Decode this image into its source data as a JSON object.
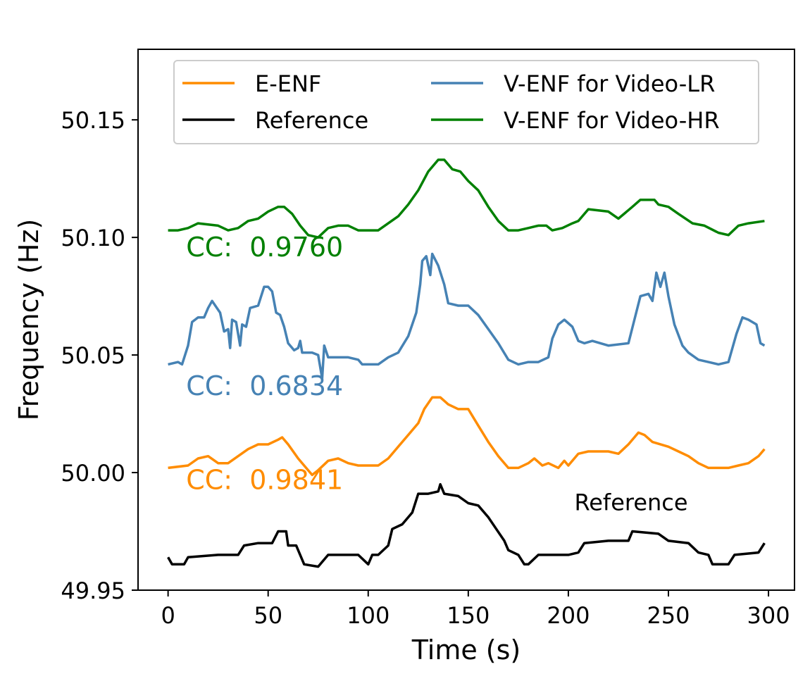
{
  "chart_data": {
    "type": "line",
    "xlabel": "Time (s)",
    "ylabel": "Frequency (Hz)",
    "xlim": [
      -15,
      313
    ],
    "ylim": [
      49.95,
      50.18
    ],
    "xticks": [
      0,
      50,
      100,
      150,
      200,
      250,
      300
    ],
    "yticks": [
      49.95,
      50.0,
      50.05,
      50.1,
      50.15
    ],
    "ytick_labels": [
      "49.95",
      "50.00",
      "50.05",
      "50.10",
      "50.15"
    ],
    "grid": false,
    "legend": {
      "placement": "top",
      "columns": 2,
      "entries": [
        "E-ENF",
        "Reference",
        "V-ENF for Video-LR",
        "V-ENF for Video-HR"
      ]
    },
    "series": [
      {
        "name": "E-ENF",
        "color": "#ff8c00",
        "points": [
          [
            0,
            50.002
          ],
          [
            10,
            50.003
          ],
          [
            15,
            50.006
          ],
          [
            20,
            50.007
          ],
          [
            25,
            50.004
          ],
          [
            30,
            50.004
          ],
          [
            35,
            50.007
          ],
          [
            40,
            50.01
          ],
          [
            45,
            50.012
          ],
          [
            50,
            50.012
          ],
          [
            55,
            50.014
          ],
          [
            57,
            50.015
          ],
          [
            60,
            50.012
          ],
          [
            65,
            50.006
          ],
          [
            70,
            50.001
          ],
          [
            72,
            49.999
          ],
          [
            75,
            50.001
          ],
          [
            80,
            50.005
          ],
          [
            85,
            50.006
          ],
          [
            90,
            50.004
          ],
          [
            95,
            50.003
          ],
          [
            100,
            50.003
          ],
          [
            105,
            50.003
          ],
          [
            110,
            50.006
          ],
          [
            115,
            50.011
          ],
          [
            120,
            50.016
          ],
          [
            125,
            50.021
          ],
          [
            128,
            50.027
          ],
          [
            132,
            50.032
          ],
          [
            136,
            50.032
          ],
          [
            140,
            50.029
          ],
          [
            145,
            50.027
          ],
          [
            150,
            50.027
          ],
          [
            155,
            50.02
          ],
          [
            160,
            50.013
          ],
          [
            165,
            50.007
          ],
          [
            170,
            50.002
          ],
          [
            175,
            50.002
          ],
          [
            180,
            50.004
          ],
          [
            183,
            50.006
          ],
          [
            187,
            50.003
          ],
          [
            190,
            50.004
          ],
          [
            195,
            50.002
          ],
          [
            198,
            50.005
          ],
          [
            200,
            50.003
          ],
          [
            205,
            50.008
          ],
          [
            210,
            50.009
          ],
          [
            220,
            50.009
          ],
          [
            225,
            50.008
          ],
          [
            230,
            50.012
          ],
          [
            235,
            50.017
          ],
          [
            238,
            50.016
          ],
          [
            242,
            50.013
          ],
          [
            250,
            50.011
          ],
          [
            255,
            50.009
          ],
          [
            260,
            50.007
          ],
          [
            265,
            50.004
          ],
          [
            270,
            50.002
          ],
          [
            280,
            50.002
          ],
          [
            285,
            50.003
          ],
          [
            290,
            50.004
          ],
          [
            295,
            50.007
          ],
          [
            298,
            50.01
          ]
        ]
      },
      {
        "name": "Reference",
        "color": "#000000",
        "points": [
          [
            0,
            49.964
          ],
          [
            2,
            49.961
          ],
          [
            8,
            49.961
          ],
          [
            10,
            49.964
          ],
          [
            25,
            49.965
          ],
          [
            35,
            49.965
          ],
          [
            38,
            49.969
          ],
          [
            45,
            49.97
          ],
          [
            52,
            49.97
          ],
          [
            55,
            49.975
          ],
          [
            59,
            49.975
          ],
          [
            60,
            49.969
          ],
          [
            64,
            49.969
          ],
          [
            68,
            49.961
          ],
          [
            75,
            49.96
          ],
          [
            80,
            49.965
          ],
          [
            95,
            49.965
          ],
          [
            100,
            49.961
          ],
          [
            102,
            49.965
          ],
          [
            105,
            49.965
          ],
          [
            110,
            49.969
          ],
          [
            112,
            49.976
          ],
          [
            117,
            49.978
          ],
          [
            122,
            49.983
          ],
          [
            125,
            49.991
          ],
          [
            130,
            49.991
          ],
          [
            135,
            49.992
          ],
          [
            136,
            49.995
          ],
          [
            138,
            49.991
          ],
          [
            145,
            49.99
          ],
          [
            150,
            49.987
          ],
          [
            155,
            49.986
          ],
          [
            160,
            49.981
          ],
          [
            164,
            49.976
          ],
          [
            168,
            49.971
          ],
          [
            170,
            49.967
          ],
          [
            175,
            49.965
          ],
          [
            178,
            49.961
          ],
          [
            180,
            49.961
          ],
          [
            185,
            49.965
          ],
          [
            200,
            49.965
          ],
          [
            205,
            49.966
          ],
          [
            208,
            49.97
          ],
          [
            220,
            49.971
          ],
          [
            230,
            49.971
          ],
          [
            232,
            49.975
          ],
          [
            245,
            49.974
          ],
          [
            250,
            49.971
          ],
          [
            260,
            49.97
          ],
          [
            265,
            49.966
          ],
          [
            270,
            49.965
          ],
          [
            272,
            49.961
          ],
          [
            280,
            49.961
          ],
          [
            283,
            49.965
          ],
          [
            295,
            49.966
          ],
          [
            298,
            49.97
          ]
        ]
      },
      {
        "name": "V-ENF for Video-LR",
        "color": "#4682b4",
        "points": [
          [
            0,
            50.046
          ],
          [
            5,
            50.047
          ],
          [
            7,
            50.046
          ],
          [
            10,
            50.054
          ],
          [
            12,
            50.064
          ],
          [
            15,
            50.066
          ],
          [
            18,
            50.066
          ],
          [
            20,
            50.07
          ],
          [
            22,
            50.073
          ],
          [
            26,
            50.068
          ],
          [
            28,
            50.06
          ],
          [
            30,
            50.061
          ],
          [
            31,
            50.053
          ],
          [
            32,
            50.065
          ],
          [
            34,
            50.064
          ],
          [
            36,
            50.054
          ],
          [
            37,
            50.063
          ],
          [
            39,
            50.062
          ],
          [
            41,
            50.07
          ],
          [
            45,
            50.071
          ],
          [
            48,
            50.079
          ],
          [
            50,
            50.079
          ],
          [
            52,
            50.077
          ],
          [
            54,
            50.068
          ],
          [
            56,
            50.067
          ],
          [
            58,
            50.062
          ],
          [
            60,
            50.055
          ],
          [
            63,
            50.052
          ],
          [
            65,
            50.053
          ],
          [
            66,
            50.056
          ],
          [
            67,
            50.051
          ],
          [
            72,
            50.051
          ],
          [
            75,
            50.05
          ],
          [
            77,
            50.04
          ],
          [
            78,
            50.054
          ],
          [
            80,
            50.049
          ],
          [
            90,
            50.049
          ],
          [
            95,
            50.048
          ],
          [
            97,
            50.046
          ],
          [
            100,
            50.046
          ],
          [
            105,
            50.046
          ],
          [
            110,
            50.049
          ],
          [
            115,
            50.051
          ],
          [
            120,
            50.058
          ],
          [
            124,
            50.068
          ],
          [
            126,
            50.08
          ],
          [
            127,
            50.09
          ],
          [
            129,
            50.092
          ],
          [
            131,
            50.084
          ],
          [
            132,
            50.093
          ],
          [
            135,
            50.088
          ],
          [
            138,
            50.08
          ],
          [
            140,
            50.072
          ],
          [
            145,
            50.071
          ],
          [
            150,
            50.071
          ],
          [
            155,
            50.067
          ],
          [
            160,
            50.061
          ],
          [
            165,
            50.055
          ],
          [
            170,
            50.048
          ],
          [
            175,
            50.046
          ],
          [
            180,
            50.047
          ],
          [
            185,
            50.047
          ],
          [
            190,
            50.049
          ],
          [
            192,
            50.057
          ],
          [
            195,
            50.063
          ],
          [
            198,
            50.065
          ],
          [
            202,
            50.062
          ],
          [
            205,
            50.056
          ],
          [
            208,
            50.055
          ],
          [
            212,
            50.056
          ],
          [
            220,
            50.054
          ],
          [
            230,
            50.055
          ],
          [
            233,
            50.065
          ],
          [
            236,
            50.075
          ],
          [
            240,
            50.076
          ],
          [
            242,
            50.073
          ],
          [
            244,
            50.085
          ],
          [
            246,
            50.079
          ],
          [
            248,
            50.085
          ],
          [
            250,
            50.075
          ],
          [
            253,
            50.063
          ],
          [
            257,
            50.054
          ],
          [
            260,
            50.051
          ],
          [
            265,
            50.048
          ],
          [
            270,
            50.047
          ],
          [
            275,
            50.046
          ],
          [
            280,
            50.047
          ],
          [
            284,
            50.059
          ],
          [
            287,
            50.066
          ],
          [
            290,
            50.065
          ],
          [
            294,
            50.063
          ],
          [
            296,
            50.055
          ],
          [
            298,
            50.054
          ]
        ]
      },
      {
        "name": "V-ENF for Video-HR",
        "color": "#008000",
        "points": [
          [
            0,
            50.103
          ],
          [
            5,
            50.103
          ],
          [
            10,
            50.104
          ],
          [
            15,
            50.106
          ],
          [
            25,
            50.105
          ],
          [
            30,
            50.103
          ],
          [
            35,
            50.104
          ],
          [
            40,
            50.107
          ],
          [
            45,
            50.108
          ],
          [
            50,
            50.111
          ],
          [
            55,
            50.113
          ],
          [
            58,
            50.113
          ],
          [
            62,
            50.11
          ],
          [
            66,
            50.105
          ],
          [
            70,
            50.101
          ],
          [
            75,
            50.1
          ],
          [
            80,
            50.104
          ],
          [
            85,
            50.105
          ],
          [
            90,
            50.105
          ],
          [
            95,
            50.103
          ],
          [
            100,
            50.103
          ],
          [
            105,
            50.103
          ],
          [
            110,
            50.106
          ],
          [
            115,
            50.109
          ],
          [
            120,
            50.114
          ],
          [
            125,
            50.12
          ],
          [
            130,
            50.128
          ],
          [
            135,
            50.133
          ],
          [
            138,
            50.133
          ],
          [
            142,
            50.129
          ],
          [
            146,
            50.128
          ],
          [
            150,
            50.124
          ],
          [
            155,
            50.12
          ],
          [
            160,
            50.113
          ],
          [
            165,
            50.107
          ],
          [
            170,
            50.103
          ],
          [
            175,
            50.103
          ],
          [
            180,
            50.104
          ],
          [
            185,
            50.105
          ],
          [
            189,
            50.105
          ],
          [
            192,
            50.103
          ],
          [
            197,
            50.104
          ],
          [
            202,
            50.106
          ],
          [
            205,
            50.107
          ],
          [
            210,
            50.112
          ],
          [
            220,
            50.111
          ],
          [
            225,
            50.108
          ],
          [
            232,
            50.113
          ],
          [
            236,
            50.116
          ],
          [
            243,
            50.116
          ],
          [
            245,
            50.114
          ],
          [
            250,
            50.113
          ],
          [
            255,
            50.11
          ],
          [
            262,
            50.106
          ],
          [
            268,
            50.105
          ],
          [
            275,
            50.102
          ],
          [
            280,
            50.101
          ],
          [
            285,
            50.105
          ],
          [
            290,
            50.106
          ],
          [
            298,
            50.107
          ]
        ]
      }
    ],
    "annotations": [
      {
        "text": "CC:  0.9760",
        "x": 9,
        "y": 50.092,
        "color": "#008000"
      },
      {
        "text": "CC:  0.6834",
        "x": 9,
        "y": 50.033,
        "color": "#4682b4"
      },
      {
        "text": "CC:  0.9841",
        "x": 9,
        "y": 49.993,
        "color": "#ff8c00"
      },
      {
        "text": "Reference",
        "x": 203,
        "y": 49.984,
        "color": "#000000"
      }
    ]
  }
}
